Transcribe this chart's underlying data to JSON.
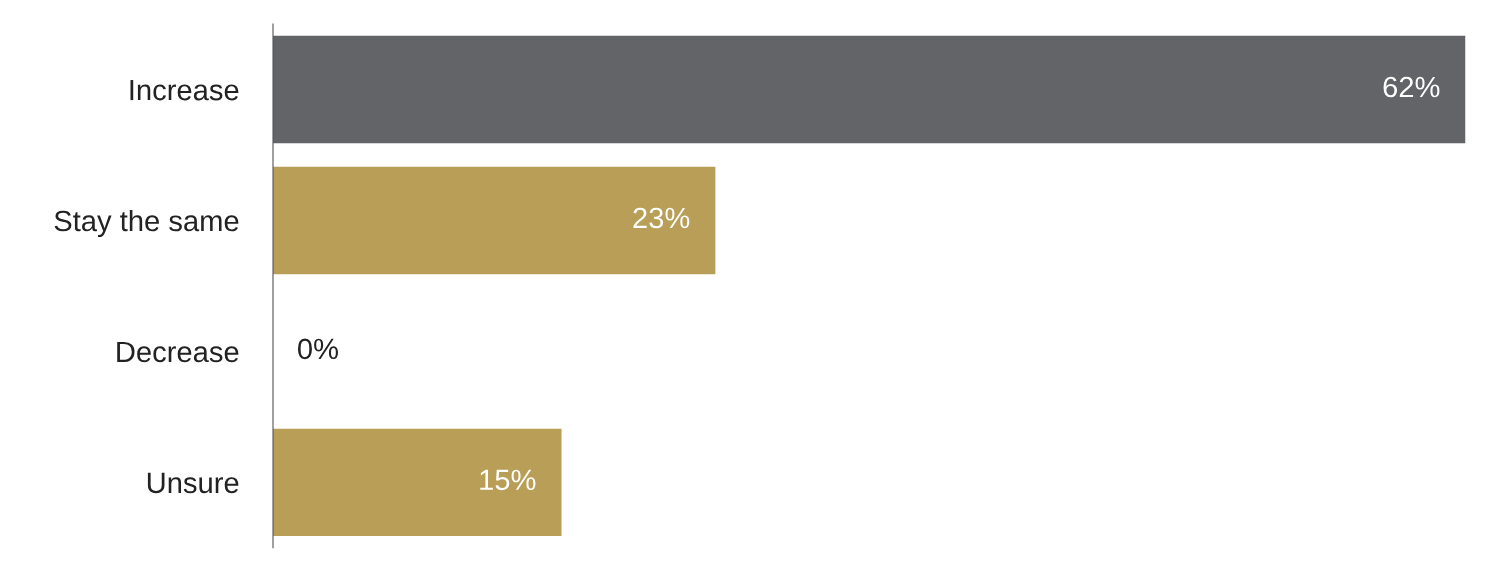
{
  "chart_data": {
    "type": "bar",
    "orientation": "horizontal",
    "categories": [
      "Increase",
      "Stay the same",
      "Decrease",
      "Unsure"
    ],
    "values": [
      62,
      23,
      0,
      15
    ],
    "colors": [
      "#636467",
      "#b99e57",
      "#b99e57",
      "#b99e57"
    ],
    "value_labels": [
      "62%",
      "23%",
      "0%",
      "15%"
    ],
    "tick_labels": "y",
    "grid": false,
    "legend": false
  }
}
